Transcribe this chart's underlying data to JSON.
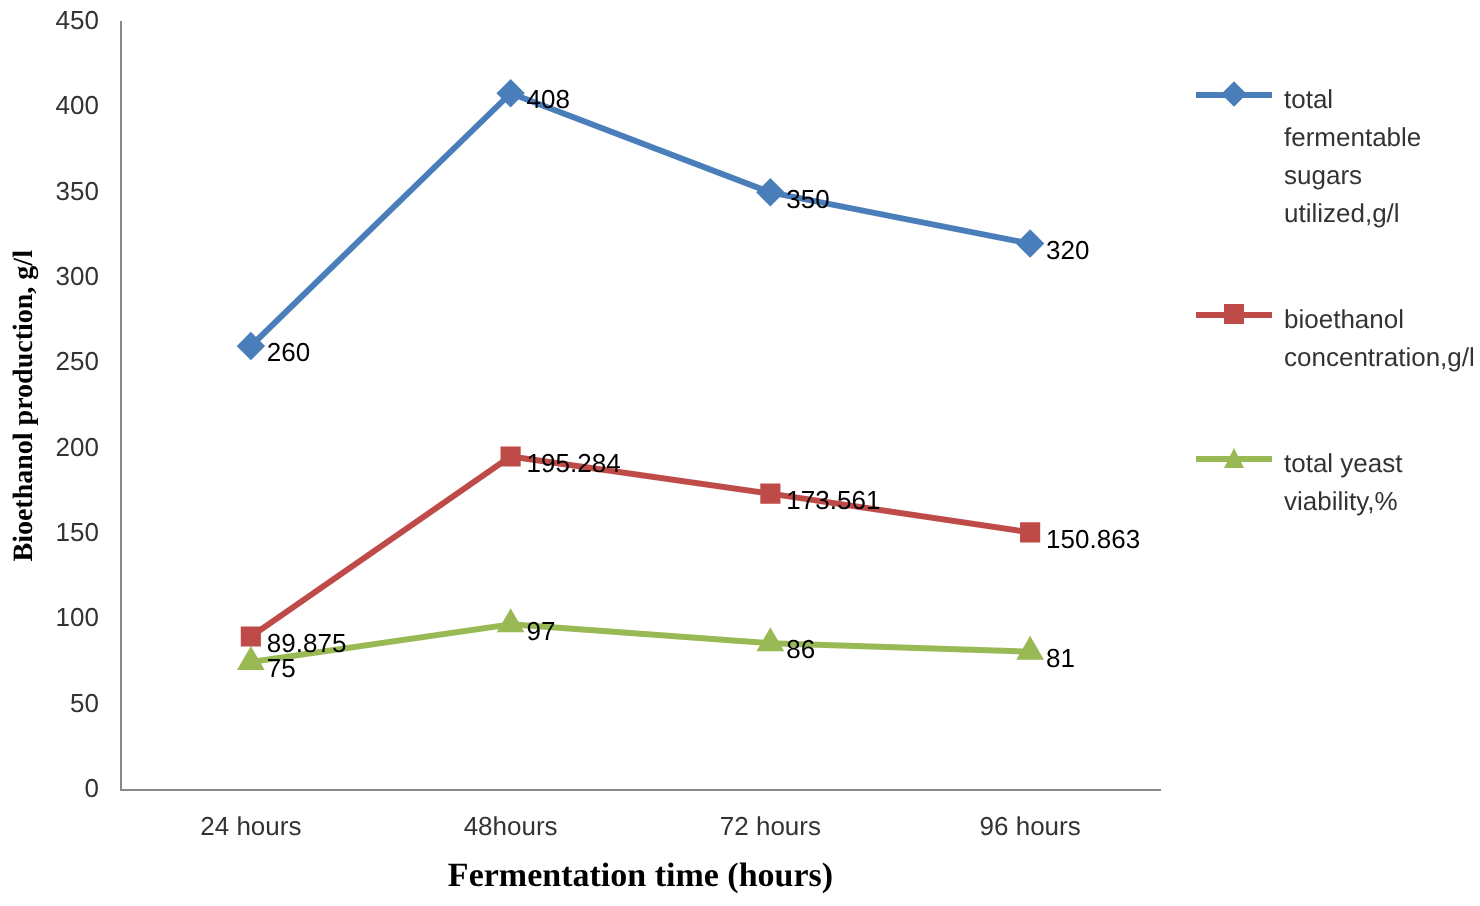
{
  "chart_data": {
    "type": "line",
    "xlabel": "Fermentation time (hours)",
    "ylabel": "Bioethanol production, g/l",
    "categories": [
      "24 hours",
      "48hours",
      "72 hours",
      "96 hours"
    ],
    "series": [
      {
        "name": "total fermentable sugars utilized,g/l",
        "color": "#4a7ebb",
        "marker": "diamond",
        "values": [
          260,
          408,
          350,
          320
        ]
      },
      {
        "name": "bioethanol concentration,g/l",
        "color": "#be4b48",
        "marker": "square",
        "values": [
          89.875,
          195.284,
          173.561,
          150.863
        ]
      },
      {
        "name": "total yeast viability,%",
        "color": "#98b954",
        "marker": "triangle",
        "values": [
          75,
          97,
          86,
          81
        ]
      }
    ],
    "ylim": [
      0,
      450
    ],
    "yticks": [
      0,
      50,
      100,
      150,
      200,
      250,
      300,
      350,
      400,
      450
    ],
    "grid": false,
    "legend": "right",
    "data_labels": true,
    "line_style": "solid"
  }
}
